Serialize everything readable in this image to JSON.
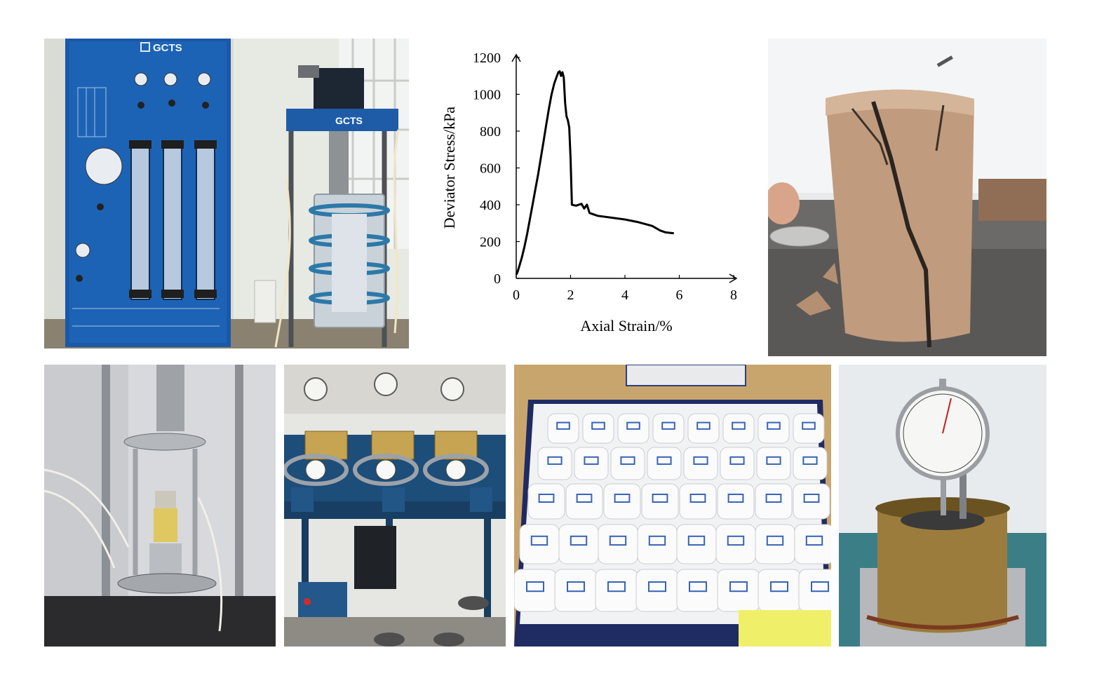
{
  "figure": {
    "brand_label": "GCTS"
  },
  "chart_data": {
    "type": "line",
    "title": "",
    "xlabel": "Axial Strain/%",
    "ylabel": "Deviator Stress/kPa",
    "xlim": [
      0,
      8
    ],
    "ylim": [
      0,
      1200
    ],
    "xticks": [
      "0",
      "2",
      "4",
      "6",
      "8"
    ],
    "yticks": [
      "0",
      "200",
      "400",
      "600",
      "800",
      "1000",
      "1200"
    ],
    "grid": false,
    "legend": "none",
    "series": [
      {
        "color": "#000000",
        "x": [
          0.0,
          0.05,
          0.1,
          0.2,
          0.3,
          0.4,
          0.5,
          0.6,
          0.7,
          0.8,
          0.9,
          1.0,
          1.1,
          1.2,
          1.3,
          1.4,
          1.5,
          1.55,
          1.6,
          1.65,
          1.7,
          1.75,
          1.8,
          1.85,
          1.9,
          1.95,
          2.0,
          2.05,
          2.2,
          2.4,
          2.5,
          2.6,
          2.7,
          3.0,
          3.5,
          4.0,
          4.5,
          5.0,
          5.3,
          5.5,
          5.8
        ],
        "y": [
          20,
          35,
          60,
          110,
          170,
          240,
          320,
          400,
          480,
          560,
          650,
          740,
          830,
          920,
          1000,
          1060,
          1100,
          1120,
          1125,
          1100,
          1120,
          1090,
          950,
          880,
          860,
          820,
          650,
          400,
          395,
          405,
          380,
          400,
          355,
          340,
          330,
          320,
          305,
          285,
          260,
          250,
          245
        ]
      }
    ]
  }
}
